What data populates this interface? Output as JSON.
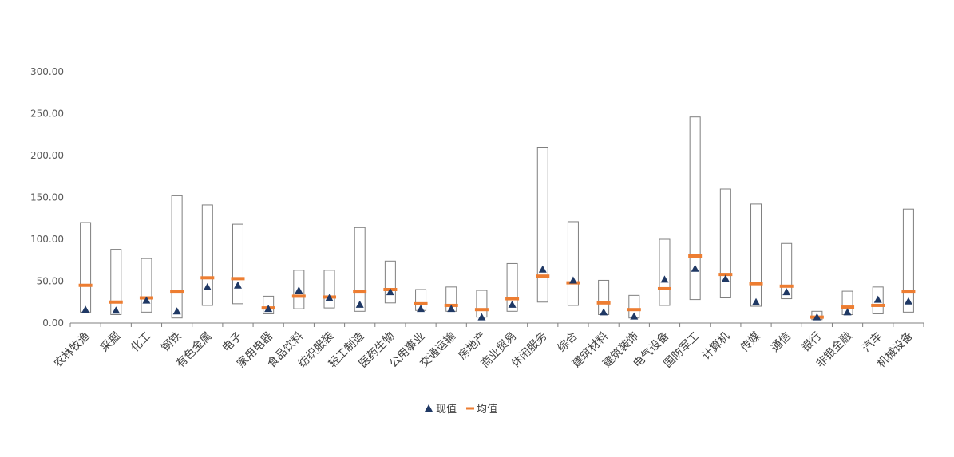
{
  "chart_data": {
    "type": "range-bar",
    "categories": [
      "农林牧渔",
      "采掘",
      "化工",
      "钢铁",
      "有色金属",
      "电子",
      "家用电器",
      "食品饮料",
      "纺织服装",
      "轻工制造",
      "医药生物",
      "公用事业",
      "交通运输",
      "房地产",
      "商业贸易",
      "休闲服务",
      "综合",
      "建筑材料",
      "建筑装饰",
      "电气设备",
      "国防军工",
      "计算机",
      "传媒",
      "通信",
      "银行",
      "非银金融",
      "汽车",
      "机械设备"
    ],
    "range_low": [
      13,
      10,
      13,
      6,
      21,
      23,
      11,
      17,
      18,
      14,
      24,
      15,
      14,
      7,
      14,
      25,
      21,
      10,
      6,
      21,
      28,
      30,
      20,
      29,
      4,
      10,
      11,
      13
    ],
    "range_high": [
      120,
      88,
      77,
      152,
      141,
      118,
      32,
      63,
      63,
      114,
      74,
      40,
      43,
      39,
      71,
      210,
      121,
      51,
      33,
      100,
      246,
      160,
      142,
      95,
      14,
      38,
      43,
      136
    ],
    "series": [
      {
        "name": "现值",
        "marker": "triangle",
        "color": "#1f3864",
        "values": [
          16,
          15,
          27,
          14,
          43,
          45,
          17,
          39,
          30,
          22,
          37,
          17,
          17,
          7,
          22,
          64,
          51,
          13,
          8,
          52,
          65,
          53,
          25,
          37,
          7,
          13,
          28,
          26
        ]
      },
      {
        "name": "均值",
        "marker": "dash",
        "color": "#ed7d31",
        "values": [
          45,
          25,
          30,
          38,
          54,
          53,
          18,
          32,
          31,
          38,
          40,
          23,
          21,
          16,
          29,
          56,
          48,
          24,
          16,
          41,
          80,
          58,
          47,
          44,
          7,
          19,
          21,
          38
        ]
      }
    ],
    "ylim": [
      0,
      300
    ],
    "yticks": [
      "0.00",
      "50.00",
      "100.00",
      "150.00",
      "200.00",
      "250.00",
      "300.00"
    ],
    "grid": false,
    "legend_position": "bottom",
    "colors": {
      "box_stroke": "#7f7f7f",
      "axis": "#7f7f7f",
      "tick_text": "#595959"
    }
  }
}
